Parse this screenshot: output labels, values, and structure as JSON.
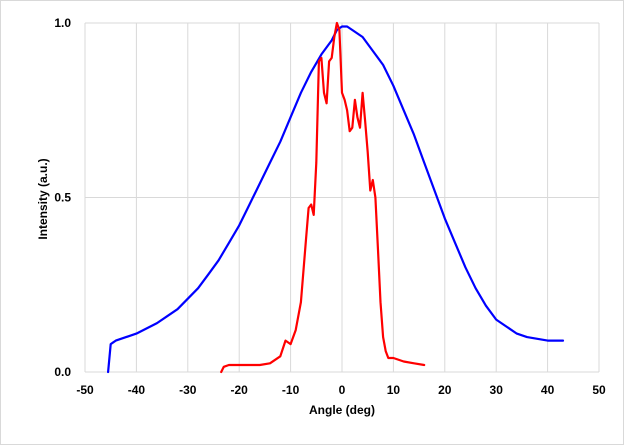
{
  "chart_data": {
    "type": "line",
    "title": "",
    "xlabel": "Angle (deg)",
    "ylabel": "Intensity (a.u.)",
    "xlim": [
      -50,
      50
    ],
    "ylim": [
      0,
      1
    ],
    "x_ticks": [
      -50,
      -40,
      -30,
      -20,
      -10,
      0,
      10,
      20,
      30,
      40,
      50
    ],
    "x_tick_labels": [
      "-50",
      "-40",
      "-30",
      "-20",
      "-10",
      "0",
      "10",
      "20",
      "30",
      "40",
      "50"
    ],
    "y_ticks": [
      0,
      0.5,
      1
    ],
    "y_tick_labels": [
      "0.0",
      "0.5",
      "1.0"
    ],
    "grid": true,
    "legend": "none",
    "series": [
      {
        "color": "#0000ff",
        "x": [
          -45.5,
          -45,
          -44.5,
          -44,
          -42,
          -40,
          -38,
          -36,
          -34,
          -32,
          -30,
          -28,
          -26,
          -24,
          -22,
          -20,
          -18,
          -16,
          -14,
          -12,
          -10,
          -8,
          -6,
          -4,
          -2,
          -1,
          0,
          1,
          2,
          4,
          6,
          8,
          10,
          12,
          14,
          16,
          18,
          20,
          22,
          24,
          26,
          28,
          30,
          32,
          34,
          36,
          38,
          40,
          42,
          43
        ],
        "y": [
          0.0,
          0.08,
          0.085,
          0.09,
          0.1,
          0.11,
          0.125,
          0.14,
          0.16,
          0.18,
          0.21,
          0.24,
          0.28,
          0.32,
          0.37,
          0.42,
          0.48,
          0.54,
          0.6,
          0.66,
          0.73,
          0.8,
          0.86,
          0.91,
          0.95,
          0.98,
          0.99,
          0.99,
          0.98,
          0.96,
          0.92,
          0.88,
          0.82,
          0.75,
          0.68,
          0.6,
          0.52,
          0.44,
          0.37,
          0.3,
          0.24,
          0.19,
          0.15,
          0.13,
          0.11,
          0.1,
          0.095,
          0.09,
          0.09,
          0.09
        ]
      },
      {
        "color": "#ff0000",
        "x": [
          -23.5,
          -23,
          -22,
          -20,
          -18,
          -16,
          -14,
          -12,
          -11,
          -10,
          -9,
          -8,
          -7,
          -6.5,
          -6,
          -5.5,
          -5,
          -4.5,
          -4,
          -3.5,
          -3,
          -2.5,
          -2,
          -1.5,
          -1,
          -0.5,
          0,
          0.5,
          1,
          1.5,
          2,
          2.5,
          3,
          3.5,
          4,
          4.5,
          5,
          5.5,
          6,
          6.5,
          7,
          7.5,
          8,
          8.5,
          9,
          10,
          12,
          14,
          16
        ],
        "y": [
          0.0,
          0.015,
          0.02,
          0.02,
          0.02,
          0.02,
          0.025,
          0.045,
          0.09,
          0.08,
          0.12,
          0.2,
          0.38,
          0.47,
          0.48,
          0.45,
          0.6,
          0.89,
          0.9,
          0.8,
          0.77,
          0.89,
          0.9,
          0.96,
          1.0,
          0.98,
          0.8,
          0.78,
          0.75,
          0.69,
          0.7,
          0.78,
          0.73,
          0.7,
          0.8,
          0.72,
          0.63,
          0.52,
          0.55,
          0.5,
          0.35,
          0.2,
          0.1,
          0.06,
          0.04,
          0.04,
          0.03,
          0.025,
          0.02
        ]
      }
    ]
  }
}
